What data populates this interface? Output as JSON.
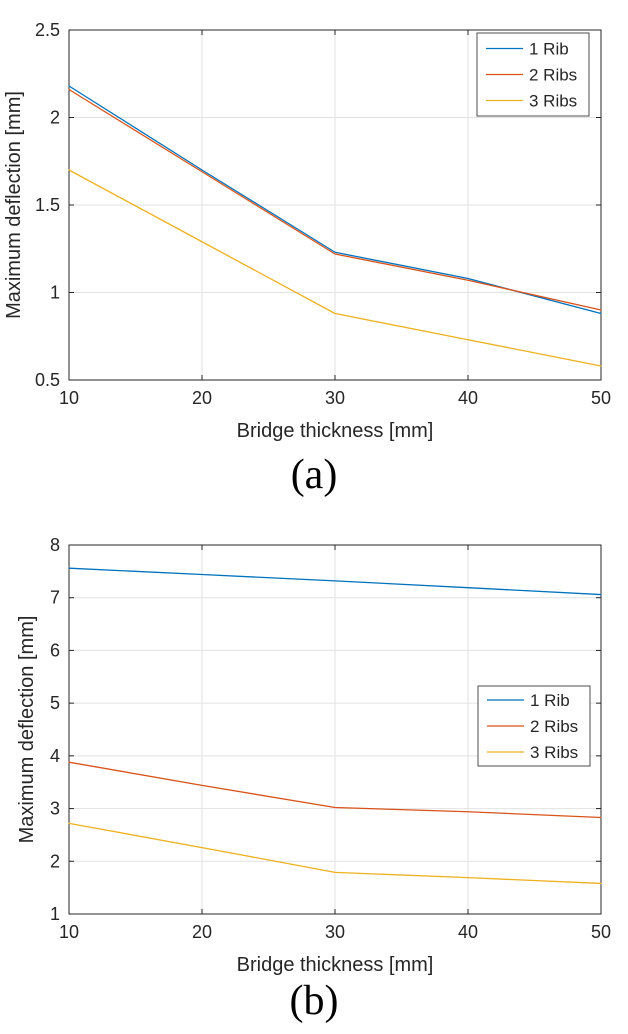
{
  "page": {
    "background": "#ffffff"
  },
  "styles": {
    "axis_color": "#262626",
    "grid_color": "#e2e2e2",
    "tick_label_color": "#262626",
    "legend_border_color": "#4d4d4d",
    "series_colors": {
      "rib1": "#0072BD",
      "rib2": "#D95319",
      "rib3": "#EDB120"
    }
  },
  "chart_data": [
    {
      "id": "a",
      "type": "line",
      "caption": "(a)",
      "title": "",
      "xlabel": "Bridge thickness [mm]",
      "ylabel": "Maximum deflection [mm]",
      "x": [
        10,
        20,
        30,
        40,
        50
      ],
      "xlim": [
        10,
        50
      ],
      "ylim": [
        0.5,
        2.5
      ],
      "xticks": [
        10,
        20,
        30,
        40,
        50
      ],
      "yticks": [
        0.5,
        1,
        1.5,
        2,
        2.5
      ],
      "xtick_labels": [
        "10",
        "20",
        "30",
        "40",
        "50"
      ],
      "ytick_labels": [
        "0.5",
        "1",
        "1.5",
        "2",
        "2.5"
      ],
      "grid": true,
      "legend_position": "top-right",
      "series": [
        {
          "name": "1 Rib",
          "color": "#0072BD",
          "values": [
            2.18,
            1.7,
            1.23,
            1.08,
            0.88
          ]
        },
        {
          "name": "2 Ribs",
          "color": "#D95319",
          "values": [
            2.16,
            1.69,
            1.22,
            1.07,
            0.9
          ]
        },
        {
          "name": "3 Ribs",
          "color": "#EDB120",
          "values": [
            1.7,
            1.29,
            0.88,
            0.73,
            0.58
          ]
        }
      ]
    },
    {
      "id": "b",
      "type": "line",
      "caption": "(b)",
      "title": "",
      "xlabel": "Bridge thickness [mm]",
      "ylabel": "Maximum deflection [mm]",
      "x": [
        10,
        20,
        30,
        40,
        50
      ],
      "xlim": [
        10,
        50
      ],
      "ylim": [
        1,
        8
      ],
      "xticks": [
        10,
        20,
        30,
        40,
        50
      ],
      "yticks": [
        1,
        2,
        3,
        4,
        5,
        6,
        7,
        8
      ],
      "xtick_labels": [
        "10",
        "20",
        "30",
        "40",
        "50"
      ],
      "ytick_labels": [
        "1",
        "2",
        "3",
        "4",
        "5",
        "6",
        "7",
        "8"
      ],
      "grid": true,
      "legend_position": "middle-right",
      "series": [
        {
          "name": "1 Rib",
          "color": "#0072BD",
          "values": [
            7.56,
            7.44,
            7.32,
            7.19,
            7.06
          ]
        },
        {
          "name": "2 Ribs",
          "color": "#D95319",
          "values": [
            3.88,
            3.44,
            3.02,
            2.94,
            2.83
          ]
        },
        {
          "name": "3 Ribs",
          "color": "#EDB120",
          "values": [
            2.72,
            2.26,
            1.79,
            1.69,
            1.58
          ]
        }
      ]
    }
  ]
}
